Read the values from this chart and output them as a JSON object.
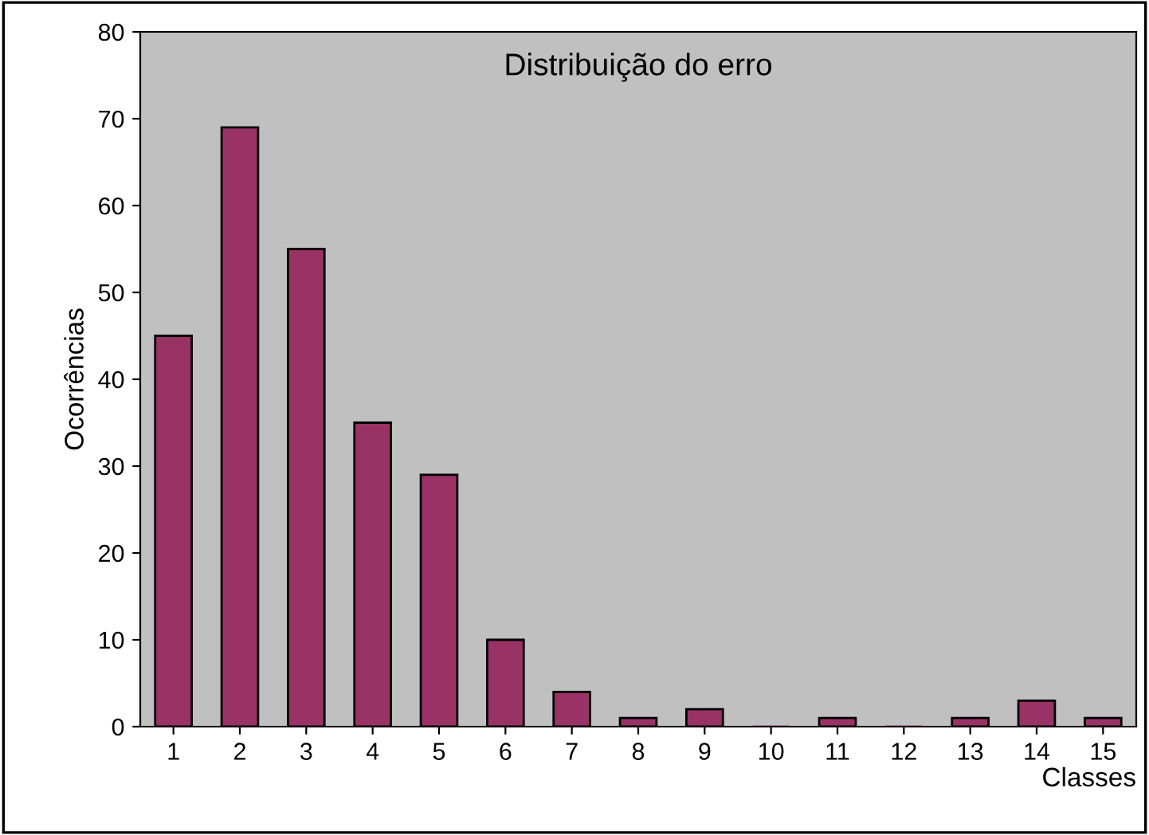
{
  "chart_data": {
    "type": "bar",
    "title": "Distribuição do erro",
    "xlabel": "Classes",
    "ylabel": "Ocorrências",
    "categories": [
      "1",
      "2",
      "3",
      "4",
      "5",
      "6",
      "7",
      "8",
      "9",
      "10",
      "11",
      "12",
      "13",
      "14",
      "15"
    ],
    "values": [
      45,
      69,
      55,
      35,
      29,
      10,
      4,
      1,
      2,
      0,
      1,
      0,
      1,
      3,
      1
    ],
    "color": "#993366",
    "ylim": [
      0,
      80
    ],
    "yticks": [
      0,
      10,
      20,
      30,
      40,
      50,
      60,
      70,
      80
    ],
    "grid": false,
    "legend": false
  }
}
